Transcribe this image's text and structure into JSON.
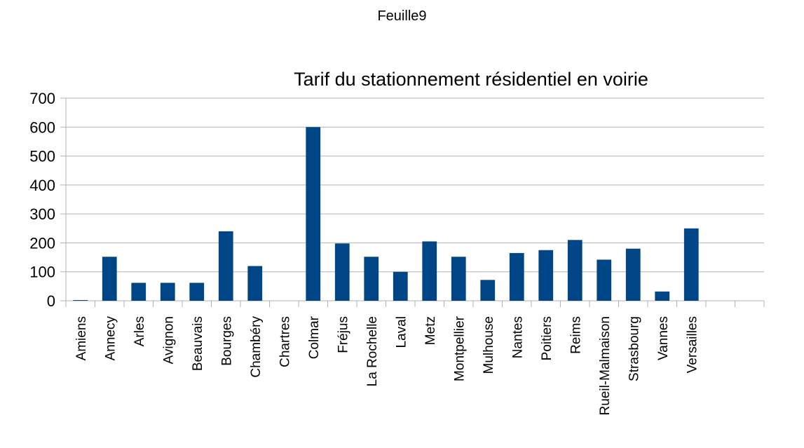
{
  "sheet": {
    "title": "Feuille9"
  },
  "chart_data": {
    "type": "bar",
    "title": "Tarif du stationnement résidentiel en voirie",
    "xlabel": "",
    "ylabel": "",
    "ylim": [
      0,
      700
    ],
    "yticks": [
      0,
      100,
      200,
      300,
      400,
      500,
      600,
      700
    ],
    "grid": true,
    "bar_color": "#004586",
    "categories": [
      "Amiens",
      "Annecy",
      "Arles",
      "Avignon",
      "Beauvais",
      "Bourges",
      "Chambéry",
      "Chartres",
      "Colmar",
      "Fréjus",
      "La Rochelle",
      "Laval",
      "Metz",
      "Montpellier",
      "Mulhouse",
      "Nantes",
      "Poitiers",
      "Reims",
      "Rueil-Malmaison",
      "Strasbourg",
      "Vannes",
      "Versailles",
      "",
      ""
    ],
    "values": [
      2,
      152,
      62,
      62,
      62,
      240,
      120,
      0,
      600,
      198,
      152,
      100,
      205,
      152,
      72,
      165,
      175,
      210,
      142,
      180,
      32,
      250,
      null,
      null
    ]
  }
}
